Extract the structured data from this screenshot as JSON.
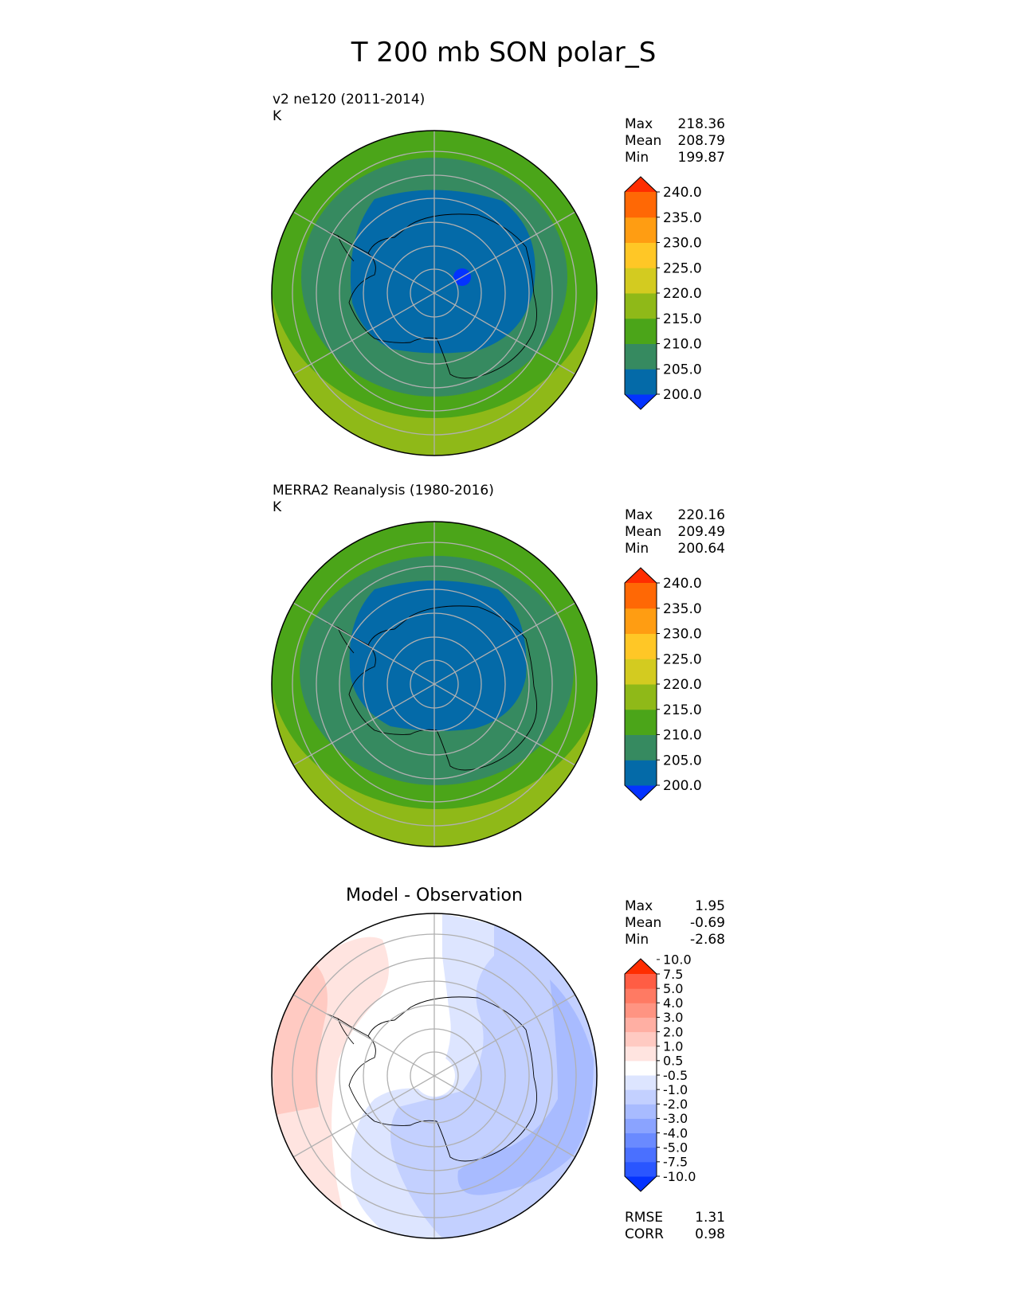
{
  "title": "T 200 mb SON polar_S",
  "panels": [
    {
      "id": "test",
      "label": "v2 ne120 (2011-2014)",
      "units": "K",
      "stats": [
        {
          "name": "Max",
          "value": "218.36"
        },
        {
          "name": "Mean",
          "value": "208.79"
        },
        {
          "name": "Min",
          "value": "199.87"
        }
      ],
      "colorbar": {
        "colors": [
          "#0433ff",
          "#046aa8",
          "#368a60",
          "#4ba519",
          "#8fb918",
          "#d3cb20",
          "#ffc726",
          "#ff9d12",
          "#ff6805",
          "#ff2d00"
        ],
        "ticks": [
          "200.0",
          "205.0",
          "210.0",
          "215.0",
          "220.0",
          "225.0",
          "230.0",
          "235.0",
          "240.0"
        ]
      },
      "field": {
        "pole_center_offset": [
          0,
          0
        ],
        "rings": [
          {
            "radius_deg": 90,
            "value_K": 217.5,
            "color": "#8fb918"
          },
          {
            "radius_deg": 55,
            "value_K": 212.5,
            "color": "#4ba519"
          },
          {
            "radius_deg": 42,
            "value_K": 207.5,
            "color": "#368a60"
          },
          {
            "radius_deg": 29,
            "value_K": 202.5,
            "color": "#046aa8"
          }
        ],
        "cold_spot": {
          "lon": 60,
          "colat_deg": 8,
          "value_K": 199.9,
          "color": "#0433ff"
        }
      }
    },
    {
      "id": "reference",
      "label": "MERRA2 Reanalysis (1980-2016)",
      "units": "K",
      "stats": [
        {
          "name": "Max",
          "value": "220.16"
        },
        {
          "name": "Mean",
          "value": "209.49"
        },
        {
          "name": "Min",
          "value": "200.64"
        }
      ],
      "colorbar": {
        "colors": [
          "#0433ff",
          "#046aa8",
          "#368a60",
          "#4ba519",
          "#8fb918",
          "#d3cb20",
          "#ffc726",
          "#ff9d12",
          "#ff6805",
          "#ff2d00"
        ],
        "ticks": [
          "200.0",
          "205.0",
          "210.0",
          "215.0",
          "220.0",
          "225.0",
          "230.0",
          "235.0",
          "240.0"
        ]
      },
      "field": {
        "rings": [
          {
            "radius_deg": 90,
            "value_K": 217.5,
            "color": "#8fb918"
          },
          {
            "radius_deg": 58,
            "value_K": 212.5,
            "color": "#4ba519"
          },
          {
            "radius_deg": 43,
            "value_K": 207.5,
            "color": "#368a60"
          },
          {
            "radius_deg": 30,
            "value_K": 202.5,
            "color": "#046aa8"
          }
        ]
      }
    },
    {
      "id": "diff",
      "label": "Model - Observation",
      "units": "",
      "stats": [
        {
          "name": "Max",
          "value": "1.95"
        },
        {
          "name": "Mean",
          "value": "-0.69"
        },
        {
          "name": "Min",
          "value": "-2.68"
        }
      ],
      "colorbar": {
        "colors": [
          "#0433ff",
          "#2a56ff",
          "#4a70ff",
          "#6a8aff",
          "#8aa3ff",
          "#a8bbff",
          "#c3d0ff",
          "#dde5ff",
          "#ffffff",
          "#ffe4e0",
          "#ffcac2",
          "#ffafa3",
          "#ff9482",
          "#ff7a63",
          "#ff5d44",
          "#ff2d00"
        ],
        "ticks": [
          "-10.0",
          "-7.5",
          "-5.0",
          "-4.0",
          "-3.0",
          "-2.0",
          "-1.0",
          "-0.5",
          "0.5",
          "1.0",
          "2.0",
          "3.0",
          "4.0",
          "5.0",
          "7.5",
          "10.0"
        ]
      },
      "field": {
        "description_values_K": {
          "west_positive": 1.0,
          "east_negative": -2.0
        }
      },
      "metrics": [
        {
          "name": "RMSE",
          "value": "1.31"
        },
        {
          "name": "CORR",
          "value": "0.98"
        }
      ]
    }
  ],
  "chart_data": {
    "type": "contour-map",
    "projection": "south polar stereographic",
    "title": "T 200 mb SON polar_S",
    "variable": "T",
    "level": "200 mb",
    "season": "SON",
    "region": "polar_S",
    "gridlines": {
      "longitudes_every_deg": 30,
      "latitude_circles_deg": [
        -50,
        -60,
        -70,
        -80
      ]
    },
    "series": [
      {
        "name": "v2 ne120 (2011-2014)",
        "units": "K",
        "max": 218.36,
        "mean": 208.79,
        "min": 199.87,
        "levels": [
          200,
          205,
          210,
          215,
          220,
          225,
          230,
          235,
          240
        ]
      },
      {
        "name": "MERRA2 Reanalysis (1980-2016)",
        "units": "K",
        "max": 220.16,
        "mean": 209.49,
        "min": 200.64,
        "levels": [
          200,
          205,
          210,
          215,
          220,
          225,
          230,
          235,
          240
        ]
      },
      {
        "name": "Model - Observation",
        "max": 1.95,
        "mean": -0.69,
        "min": -2.68,
        "rmse": 1.31,
        "corr": 0.98,
        "levels": [
          -10,
          -7.5,
          -5,
          -4,
          -3,
          -2,
          -1,
          -0.5,
          0.5,
          1,
          2,
          3,
          4,
          5,
          7.5,
          10
        ]
      }
    ]
  }
}
